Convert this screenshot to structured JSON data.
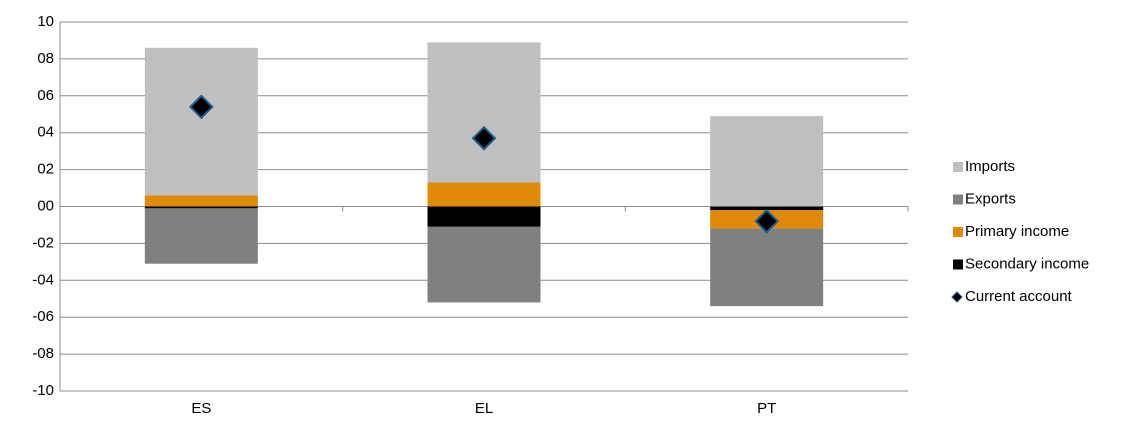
{
  "chart_data": {
    "type": "bar",
    "stacked": true,
    "categories": [
      "ES",
      "EL",
      "PT"
    ],
    "series": [
      {
        "name": "Imports",
        "color": "#c0c0c0",
        "values": [
          8.0,
          7.6,
          4.9
        ]
      },
      {
        "name": "Exports",
        "color": "#808080",
        "values": [
          -3.0,
          -4.1,
          -4.2
        ]
      },
      {
        "name": "Primary income",
        "color": "#e08a0a",
        "values": [
          0.6,
          1.3,
          -1.0
        ]
      },
      {
        "name": "Secondary income",
        "color": "#000000",
        "values": [
          -0.1,
          -1.1,
          -0.2
        ]
      },
      {
        "name": "Current account",
        "type": "scatter",
        "marker": "diamond",
        "color": "#000000",
        "edge_color": "#1f5f8f",
        "values": [
          5.4,
          3.7,
          -0.8
        ]
      }
    ],
    "ylim": [
      -10,
      10
    ],
    "yticks": [
      -10,
      {
        "value": -8,
        "label": "-08"
      },
      {
        "value": -6,
        "label": "-06"
      },
      {
        "value": -4,
        "label": "-04"
      },
      {
        "value": -2,
        "label": "-02"
      },
      {
        "value": 0,
        "label": "00"
      },
      {
        "value": 2,
        "label": "02"
      },
      {
        "value": 4,
        "label": "04"
      },
      {
        "value": 6,
        "label": "06"
      },
      {
        "value": 8,
        "label": "08"
      },
      10
    ],
    "grid": true,
    "legend": "right"
  }
}
